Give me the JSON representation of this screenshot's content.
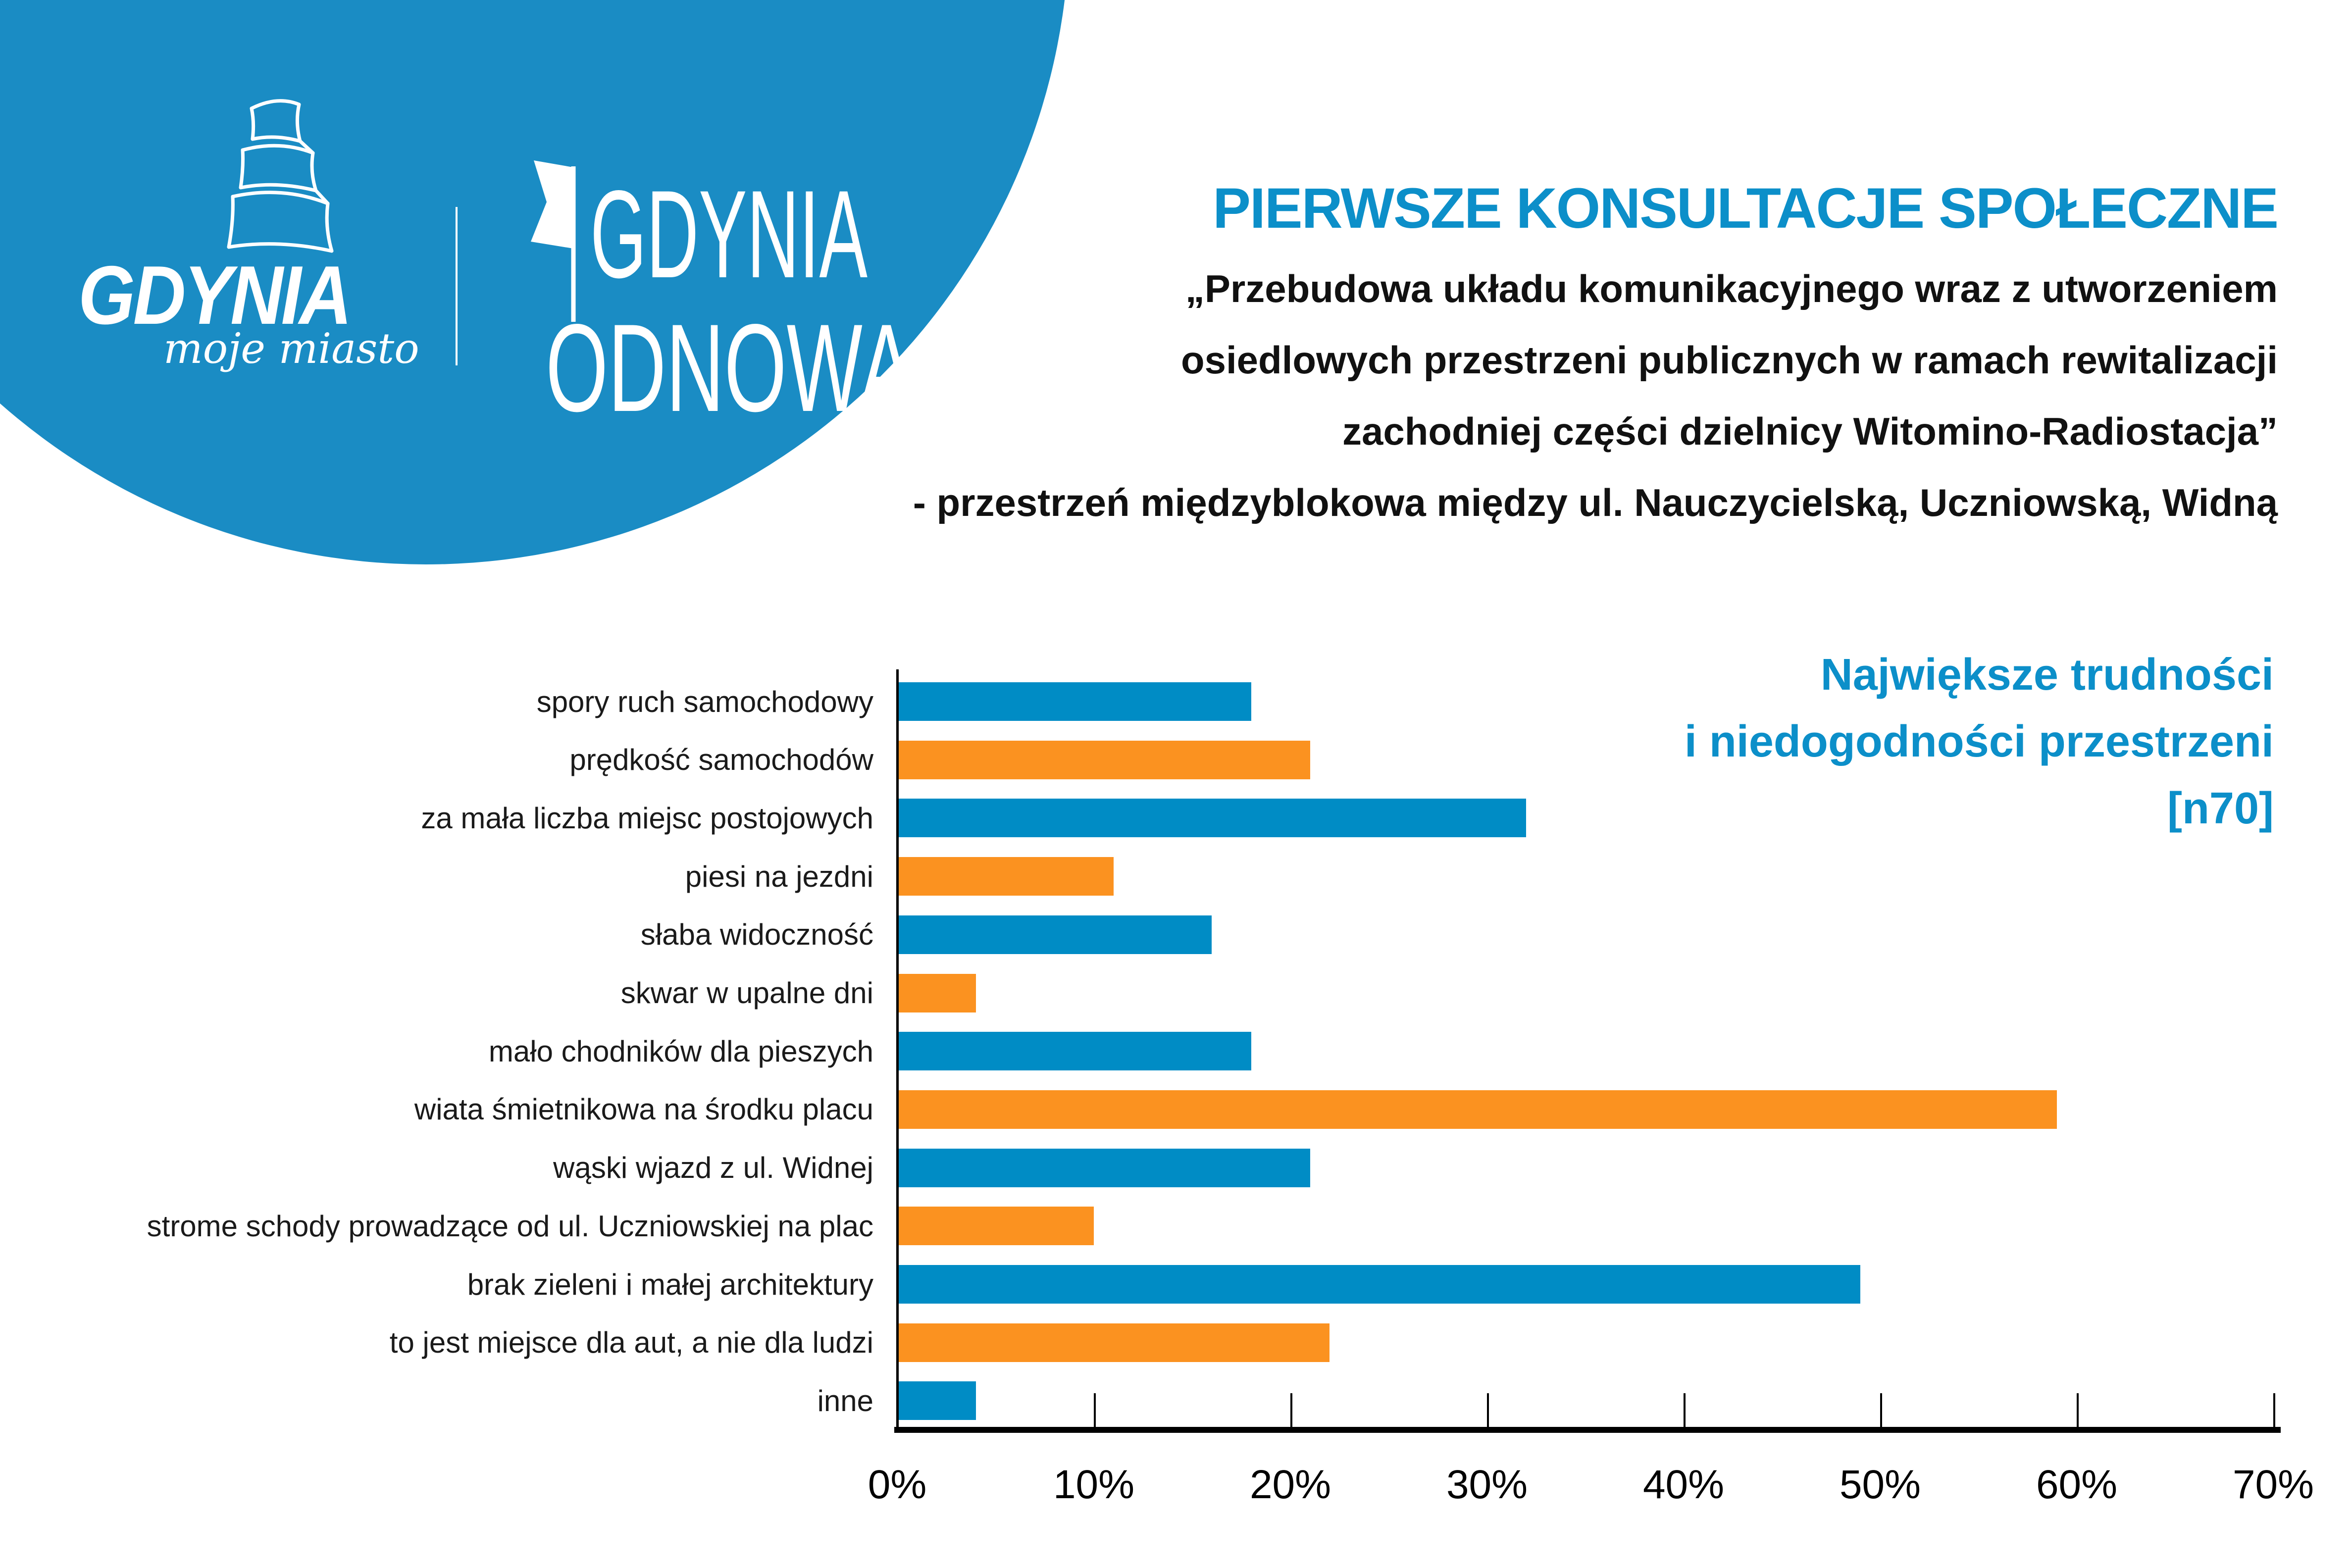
{
  "colors": {
    "circle_blue": "#1a8cc4",
    "bar_blue": "#008cc5",
    "bar_orange": "#fb9220",
    "heading_blue": "#0c8fc9",
    "text_black": "#111111",
    "logo_white": "#ffffff"
  },
  "header": {
    "logo_city": {
      "name": "GDYNIA",
      "tagline": "moje miasto"
    },
    "logo_program": {
      "line1": "GDYNIA",
      "line2": "ODNOWA"
    },
    "title": "PIERWSZE KONSULTACJE SPOŁECZNE",
    "subtitle_lines": [
      "„Przebudowa układu komunikacyjnego wraz z utworzeniem",
      "osiedlowych przestrzeni publicznych w ramach rewitalizacji",
      "zachodniej części dzielnicy Witomino-Radiostacja”",
      "- przestrzeń międzyblokowa między ul. Nauczycielską, Uczniowską, Widną"
    ]
  },
  "chart_data": {
    "type": "bar",
    "orientation": "horizontal",
    "title_lines": [
      "Największe trudności",
      "i niedogodności przestrzeni",
      "[n70]"
    ],
    "categories": [
      "spory ruch samochodowy",
      "prędkość samochodów",
      "za mała liczba miejsc postojowych",
      "piesi na jezdni",
      "słaba widoczność",
      "skwar w upalne dni",
      "mało chodników dla pieszych",
      "wiata śmietnikowa na środku placu",
      "wąski wjazd z ul. Widnej",
      "strome schody prowadzące od ul. Uczniowskiej na plac",
      "brak zieleni i małej architektury",
      "to jest miejsce dla aut, a nie dla ludzi",
      "inne"
    ],
    "values": [
      18,
      21,
      32,
      11,
      16,
      4,
      18,
      59,
      21,
      10,
      49,
      22,
      4
    ],
    "unit": "%",
    "bar_color_pattern": "alternating blue/orange starting with blue",
    "series_colors": {
      "blue": "#008cc5",
      "orange": "#fb9220"
    },
    "x_ticks": [
      "0%",
      "10%",
      "20%",
      "30%",
      "40%",
      "50%",
      "60%",
      "70%"
    ],
    "xlim": [
      0,
      70
    ],
    "grid": false,
    "legend": false
  }
}
